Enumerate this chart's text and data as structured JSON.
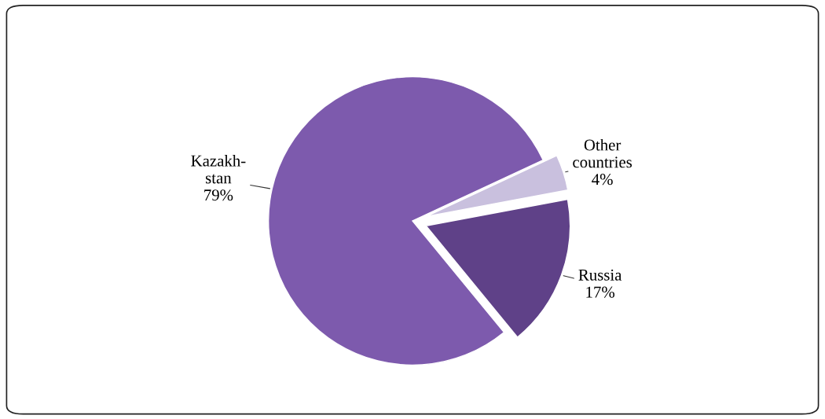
{
  "chart_data": {
    "type": "pie",
    "categories": [
      "Kazakh-\nstan",
      "Russia",
      "Other\ncountries"
    ],
    "values": [
      79,
      17,
      4
    ],
    "colors": [
      "#7d5aad",
      "#5f4188",
      "#c9c0de"
    ],
    "value_labels": [
      "79%",
      "17%",
      "4%"
    ],
    "legend": false
  }
}
